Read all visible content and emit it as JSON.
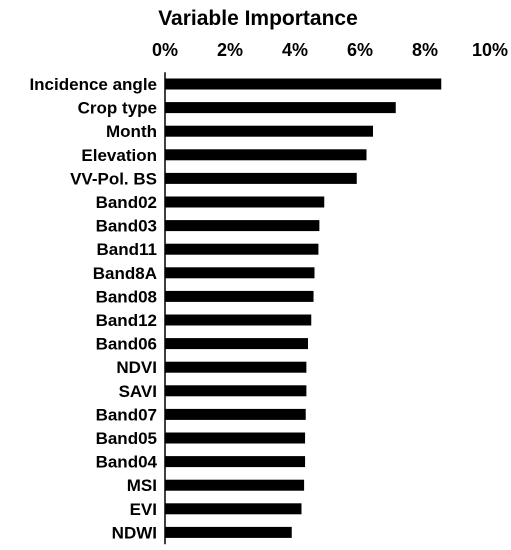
{
  "chart_data": {
    "type": "bar",
    "orientation": "horizontal",
    "title": "Variable Importance",
    "xlabel": "",
    "ylabel": "",
    "xlim": [
      0,
      10
    ],
    "x_ticks": [
      "0%",
      "2%",
      "4%",
      "6%",
      "8%",
      "10%"
    ],
    "x_axis_position": "top",
    "grid": false,
    "bar_color": "#000000",
    "categories": [
      "Incidence angle",
      "Crop type",
      "Month",
      "Elevation",
      "VV-Pol. BS",
      "Band02",
      "Band03",
      "Band11",
      "Band8A",
      "Band08",
      "Band12",
      "Band06",
      "NDVI",
      "SAVI",
      "Band07",
      "Band05",
      "Band04",
      "MSI",
      "EVI",
      "NDWI"
    ],
    "values": [
      8.5,
      7.1,
      6.4,
      6.2,
      5.9,
      4.9,
      4.75,
      4.72,
      4.6,
      4.57,
      4.5,
      4.4,
      4.35,
      4.35,
      4.33,
      4.31,
      4.31,
      4.28,
      4.2,
      3.9
    ]
  }
}
